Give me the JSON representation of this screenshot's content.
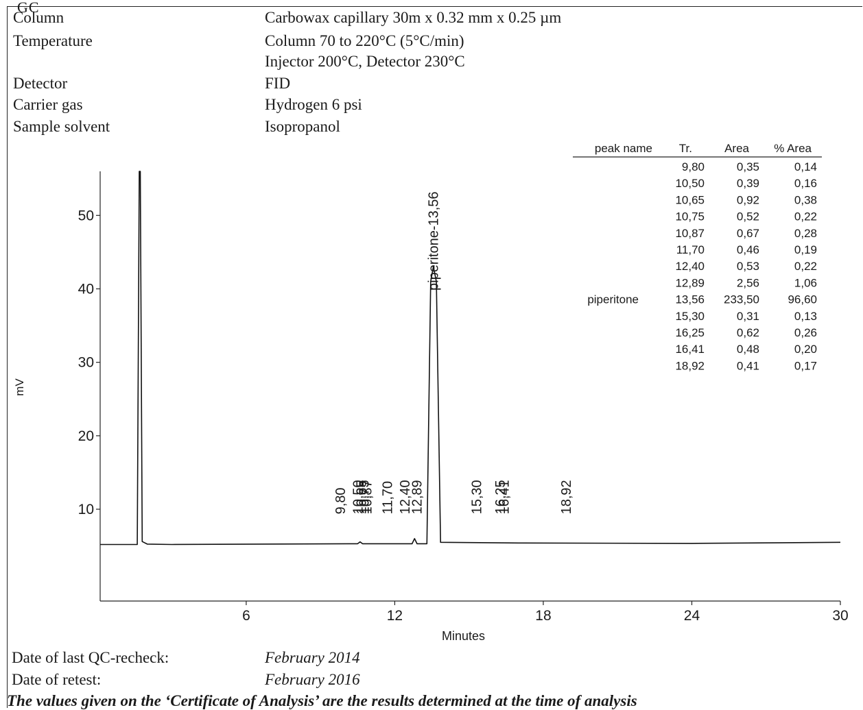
{
  "header": {
    "section_label": "GC"
  },
  "conditions": [
    {
      "label": "Column",
      "value": "Carbowax capillary 30m x 0.32 mm x 0.25 µm"
    },
    {
      "label": "Temperature",
      "value": "Column 70 to 220°C (5°C/min)"
    },
    {
      "label": "",
      "value": "Injector 200°C, Detector 230°C"
    },
    {
      "label": "Detector",
      "value": "FID"
    },
    {
      "label": "Carrier gas",
      "value": "Hydrogen 6 psi"
    },
    {
      "label": "Sample solvent",
      "value": "Isopropanol"
    }
  ],
  "peak_table": {
    "headers": [
      "peak name",
      "Tr.",
      "Area",
      "% Area"
    ],
    "rows": [
      {
        "name": "",
        "tr": "9,80",
        "area": "0,35",
        "pct": "0,14"
      },
      {
        "name": "",
        "tr": "10,50",
        "area": "0,39",
        "pct": "0,16"
      },
      {
        "name": "",
        "tr": "10,65",
        "area": "0,92",
        "pct": "0,38"
      },
      {
        "name": "",
        "tr": "10,75",
        "area": "0,52",
        "pct": "0,22"
      },
      {
        "name": "",
        "tr": "10,87",
        "area": "0,67",
        "pct": "0,28"
      },
      {
        "name": "",
        "tr": "11,70",
        "area": "0,46",
        "pct": "0,19"
      },
      {
        "name": "",
        "tr": "12,40",
        "area": "0,53",
        "pct": "0,22"
      },
      {
        "name": "",
        "tr": "12,89",
        "area": "2,56",
        "pct": "1,06"
      },
      {
        "name": "piperitone",
        "tr": "13,56",
        "area": "233,50",
        "pct": "96,60"
      },
      {
        "name": "",
        "tr": "15,30",
        "area": "0,31",
        "pct": "0,13"
      },
      {
        "name": "",
        "tr": "16,25",
        "area": "0,62",
        "pct": "0,26"
      },
      {
        "name": "",
        "tr": "16,41",
        "area": "0,48",
        "pct": "0,20"
      },
      {
        "name": "",
        "tr": "18,92",
        "area": "0,41",
        "pct": "0,17"
      }
    ]
  },
  "chart_data": {
    "type": "line",
    "xlabel": "Minutes",
    "ylabel": "mV",
    "x_ticks": [
      "6",
      "12",
      "18",
      "24",
      "30"
    ],
    "y_ticks": [
      "10",
      "20",
      "30",
      "40",
      "50"
    ],
    "xlim": [
      0.1,
      30
    ],
    "ylim": [
      -2.5,
      56
    ],
    "baseline_mV": 5.3,
    "grid": false,
    "series": [
      {
        "x": [
          0.1,
          1.6,
          1.68,
          1.72,
          1.8,
          2.0,
          3.0,
          10.5,
          10.6,
          10.7,
          12.7,
          12.8,
          12.9,
          13.3,
          13.45,
          13.56,
          13.68,
          13.85,
          17,
          24,
          30
        ],
        "y": [
          5.2,
          5.2,
          61,
          61,
          5.6,
          5.25,
          5.2,
          5.3,
          5.55,
          5.3,
          5.3,
          6.0,
          5.3,
          5.3,
          41,
          43,
          41,
          5.5,
          5.4,
          5.35,
          5.5
        ]
      }
    ],
    "peak_labels": [
      {
        "x": 9.8,
        "text": "9,80"
      },
      {
        "x": 10.5,
        "text": "10,50"
      },
      {
        "x": 10.65,
        "text": "10,65"
      },
      {
        "x": 10.75,
        "text": "10,75"
      },
      {
        "x": 10.87,
        "text": "10,87"
      },
      {
        "x": 11.7,
        "text": "11,70"
      },
      {
        "x": 12.4,
        "text": "12,40"
      },
      {
        "x": 12.89,
        "text": "12,89"
      },
      {
        "x": 15.3,
        "text": "15,30"
      },
      {
        "x": 16.25,
        "text": "16,25"
      },
      {
        "x": 16.41,
        "text": "16,41"
      },
      {
        "x": 18.92,
        "text": "18,92"
      }
    ],
    "main_peak_label": {
      "x": 13.56,
      "text": "piperitone-13,56"
    }
  },
  "footer": {
    "qc_label": "Date of last QC-recheck:",
    "qc_value": "February 2014",
    "retest_label": "Date of retest:",
    "retest_value": "February 2016",
    "disclaimer": "The values given on the ‘Certificate of Analysis’ are the results determined at the time of analysis"
  }
}
